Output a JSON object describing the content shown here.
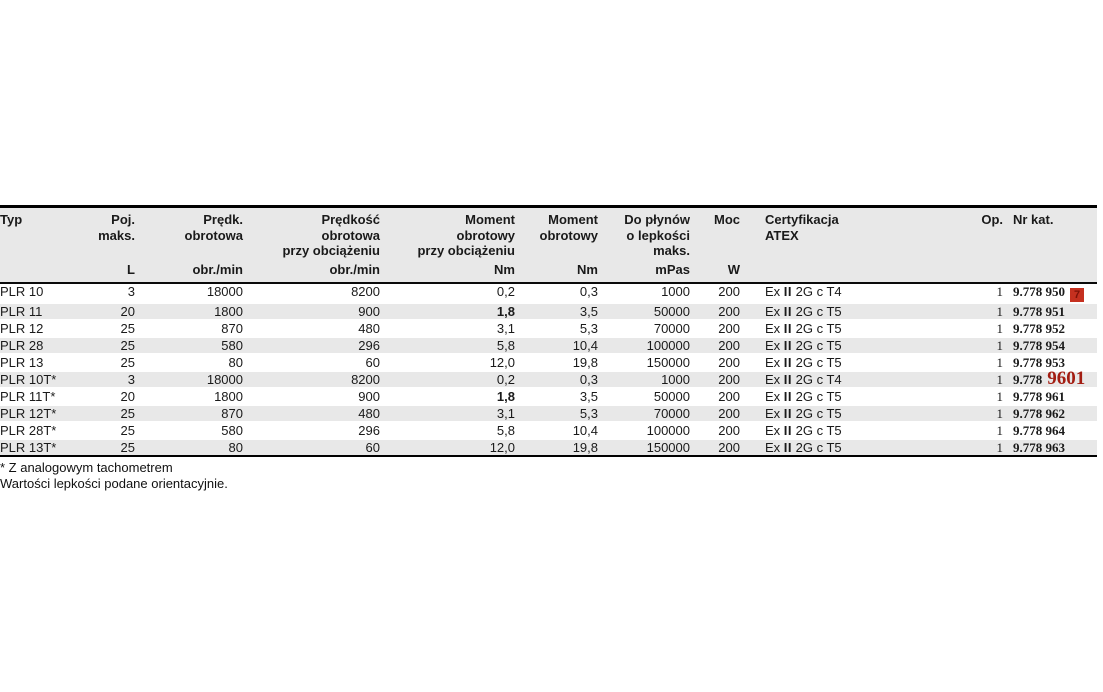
{
  "colors": {
    "header_bg": "#e8e8e8",
    "stripe_bg": "#e8e8e8",
    "rule_black": "#000000",
    "marker_bg": "#c5301f",
    "marker_glyph": "#7c1208",
    "annotation_red": "#a31d12"
  },
  "table": {
    "columns": [
      {
        "id": "typ",
        "lines": [
          "Typ"
        ],
        "unit": "",
        "align": "left"
      },
      {
        "id": "poj",
        "lines": [
          "Poj.",
          "maks."
        ],
        "unit": "L",
        "align": "right"
      },
      {
        "id": "predk",
        "lines": [
          "Prędk.",
          "obrotowa"
        ],
        "unit": "obr./min",
        "align": "right"
      },
      {
        "id": "predk_obc",
        "lines": [
          "Prędkość",
          "obrotowa",
          "przy obciążeniu"
        ],
        "unit": "obr./min",
        "align": "right"
      },
      {
        "id": "moment_obc",
        "lines": [
          "Moment",
          "obrotowy",
          "przy obciążeniu"
        ],
        "unit": "Nm",
        "align": "right"
      },
      {
        "id": "moment",
        "lines": [
          "Moment",
          "obrotowy"
        ],
        "unit": "Nm",
        "align": "right"
      },
      {
        "id": "lepkosc",
        "lines": [
          "Do płynów",
          "o lepkości",
          "maks."
        ],
        "unit": "mPas",
        "align": "right"
      },
      {
        "id": "moc",
        "lines": [
          "Moc"
        ],
        "unit": "W",
        "align": "right"
      },
      {
        "id": "cert",
        "lines": [
          "Certyfikacja",
          "ATEX"
        ],
        "unit": "",
        "align": "left"
      },
      {
        "id": "op",
        "lines": [
          "Op."
        ],
        "unit": "",
        "align": "right"
      },
      {
        "id": "nrkat",
        "lines": [
          "Nr kat."
        ],
        "unit": "",
        "align": "left"
      }
    ],
    "rows": [
      {
        "cells": {
          "typ": "PLR 10",
          "poj": "3",
          "predk": "18000",
          "predk_obc": "8200",
          "moment_obc": "0,2",
          "moment": "0,3",
          "lepkosc": "1000",
          "moc": "200",
          "cert": "Ex II 2G c T4",
          "op": "1",
          "nrkat": "9.778 950"
        },
        "marker": "7"
      },
      {
        "cells": {
          "typ": "PLR 11",
          "poj": "20",
          "predk": "1800",
          "predk_obc": "900",
          "moment_obc": "1,8",
          "moment": "3,5",
          "lepkosc": "50000",
          "moc": "200",
          "cert": "Ex II 2G c T5",
          "op": "1",
          "nrkat": "9.778 951"
        },
        "bold": [
          "moment_obc"
        ]
      },
      {
        "cells": {
          "typ": "PLR 12",
          "poj": "25",
          "predk": "870",
          "predk_obc": "480",
          "moment_obc": "3,1",
          "moment": "5,3",
          "lepkosc": "70000",
          "moc": "200",
          "cert": "Ex II 2G c T5",
          "op": "1",
          "nrkat": "9.778 952"
        }
      },
      {
        "cells": {
          "typ": "PLR 28",
          "poj": "25",
          "predk": "580",
          "predk_obc": "296",
          "moment_obc": "5,8",
          "moment": "10,4",
          "lepkosc": "100000",
          "moc": "200",
          "cert": "Ex II 2G c T5",
          "op": "1",
          "nrkat": "9.778 954"
        }
      },
      {
        "cells": {
          "typ": "PLR 13",
          "poj": "25",
          "predk": "80",
          "predk_obc": "60",
          "moment_obc": "12,0",
          "moment": "19,8",
          "lepkosc": "150000",
          "moc": "200",
          "cert": "Ex II 2G c T5",
          "op": "1",
          "nrkat": "9.778 953"
        }
      },
      {
        "cells": {
          "typ": "PLR 10T*",
          "poj": "3",
          "predk": "18000",
          "predk_obc": "8200",
          "moment_obc": "0,2",
          "moment": "0,3",
          "lepkosc": "1000",
          "moc": "200",
          "cert": "Ex II 2G c T4",
          "op": "1",
          "nrkat": "9.778"
        },
        "overlay": "9601"
      },
      {
        "cells": {
          "typ": "PLR 11T*",
          "poj": "20",
          "predk": "1800",
          "predk_obc": "900",
          "moment_obc": "1,8",
          "moment": "3,5",
          "lepkosc": "50000",
          "moc": "200",
          "cert": "Ex II 2G c T5",
          "op": "1",
          "nrkat": "9.778 961"
        },
        "bold": [
          "moment_obc"
        ]
      },
      {
        "cells": {
          "typ": "PLR 12T*",
          "poj": "25",
          "predk": "870",
          "predk_obc": "480",
          "moment_obc": "3,1",
          "moment": "5,3",
          "lepkosc": "70000",
          "moc": "200",
          "cert": "Ex II 2G c T5",
          "op": "1",
          "nrkat": "9.778 962"
        }
      },
      {
        "cells": {
          "typ": "PLR 28T*",
          "poj": "25",
          "predk": "580",
          "predk_obc": "296",
          "moment_obc": "5,8",
          "moment": "10,4",
          "lepkosc": "100000",
          "moc": "200",
          "cert": "Ex II 2G c T5",
          "op": "1",
          "nrkat": "9.778 964"
        }
      },
      {
        "cells": {
          "typ": "PLR 13T*",
          "poj": "25",
          "predk": "80",
          "predk_obc": "60",
          "moment_obc": "12,0",
          "moment": "19,8",
          "lepkosc": "150000",
          "moc": "200",
          "cert": "Ex II 2G c T5",
          "op": "1",
          "nrkat": "9.778 963"
        }
      }
    ]
  },
  "footnotes": [
    "* Z analogowym tachometrem",
    "Wartości lepkości podane orientacyjnie."
  ]
}
